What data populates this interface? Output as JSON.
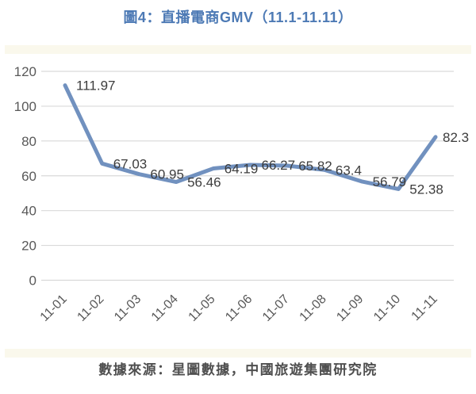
{
  "title": "圖4：直播電商GMV（11.1-11.11）",
  "caption": "數據來源：星圖數據，中國旅遊集團研究院",
  "colors": {
    "title": "#4d7ab5",
    "line": "#7191bf",
    "grid": "#d9d9d9",
    "tick_label": "#595959",
    "data_label": "#3d3d3d",
    "caption": "#4f4f4f",
    "strip": "#faf8ec",
    "background": "#ffffff"
  },
  "chart_data": {
    "type": "line",
    "title": "圖4：直播電商GMV（11.1-11.11）",
    "categories": [
      "11-01",
      "11-02",
      "11-03",
      "11-04",
      "11-05",
      "11-06",
      "11-07",
      "11-08",
      "11-09",
      "11-10",
      "11-11"
    ],
    "series": [
      {
        "name": "直播電商GMV",
        "values": [
          111.97,
          67.03,
          60.95,
          56.46,
          64.19,
          66.27,
          65.82,
          63.4,
          56.79,
          52.38,
          82.3
        ]
      }
    ],
    "data_labels": [
      111.97,
      67.03,
      60.95,
      56.46,
      64.19,
      66.27,
      65.82,
      63.4,
      56.79,
      52.38,
      82.3
    ],
    "xlabel": "",
    "ylabel": "",
    "ylim": [
      0,
      120
    ],
    "ytick_step": 20,
    "yticks": [
      0,
      20,
      40,
      60,
      80,
      100,
      120
    ],
    "grid": true,
    "legend_position": "none",
    "x_label_rotation_deg": 45,
    "show_point_markers": false
  }
}
